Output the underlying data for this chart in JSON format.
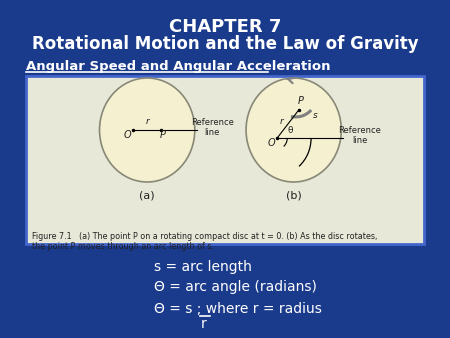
{
  "bg_color": "#1a3a8c",
  "title1": "CHAPTER 7",
  "title2": "Rotational Motion and the Law of Gravity",
  "subtitle": "Angular Speed and Angular Acceleration",
  "fig_box_color": "#e8e8d8",
  "fig_box_border": "#4466cc",
  "circle_fill": "#f5f0d0",
  "circle_edge": "#888877",
  "text_color_white": "#ffffff",
  "text_color_dark": "#222222",
  "formula_line1": "s = arc length",
  "formula_line2": "Θ = arc angle (radians)",
  "formula_line3": "Θ = s ; where r = radius",
  "formula_line4": "r",
  "fig_caption": "Figure 7.1   (a) The point P on a rotating compact disc at t = 0. (b) As the disc rotates,\nthe point P moves through an arc length of s."
}
